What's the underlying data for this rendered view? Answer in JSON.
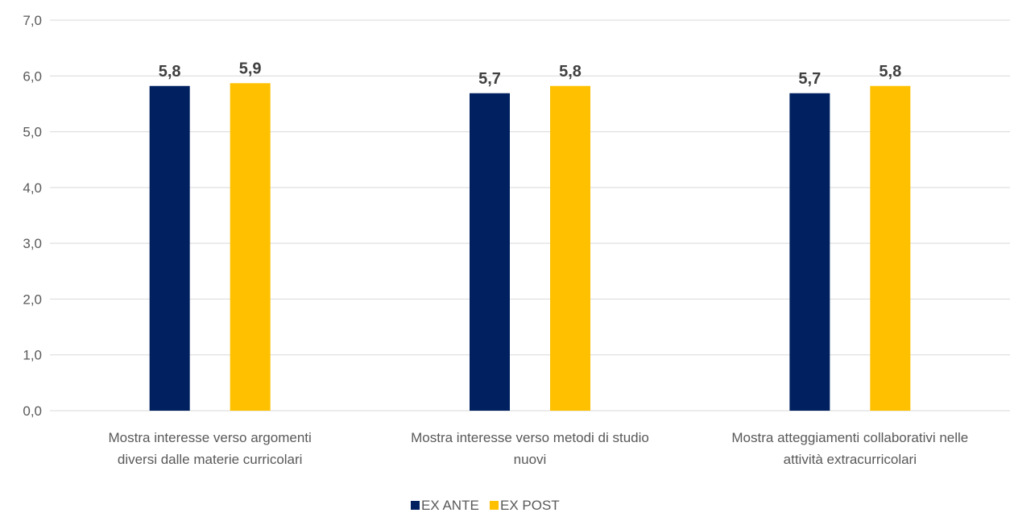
{
  "chart_data": {
    "type": "bar",
    "title": "",
    "xlabel": "",
    "ylabel": "",
    "ylim": [
      0,
      7
    ],
    "ytick_step": 1,
    "ytick_labels": [
      "0,0",
      "1,0",
      "2,0",
      "3,0",
      "4,0",
      "5,0",
      "6,0",
      "7,0"
    ],
    "grid": true,
    "legend_position": "bottom",
    "categories": [
      [
        "Mostra interesse verso argomenti",
        "diversi dalle materie curricolari"
      ],
      [
        "Mostra interesse verso metodi di studio",
        "nuovi"
      ],
      [
        "Mostra atteggiamenti collaborativi nelle",
        "attività extracurricolari"
      ]
    ],
    "series": [
      {
        "name": "EX ANTE",
        "color": "#002060",
        "values": [
          5.82,
          5.69,
          5.69
        ],
        "labels": [
          "5,8",
          "5,7",
          "5,7"
        ]
      },
      {
        "name": "EX POST",
        "color": "#FFC000",
        "values": [
          5.87,
          5.82,
          5.82
        ],
        "labels": [
          "5,9",
          "5,8",
          "5,8"
        ]
      }
    ]
  }
}
